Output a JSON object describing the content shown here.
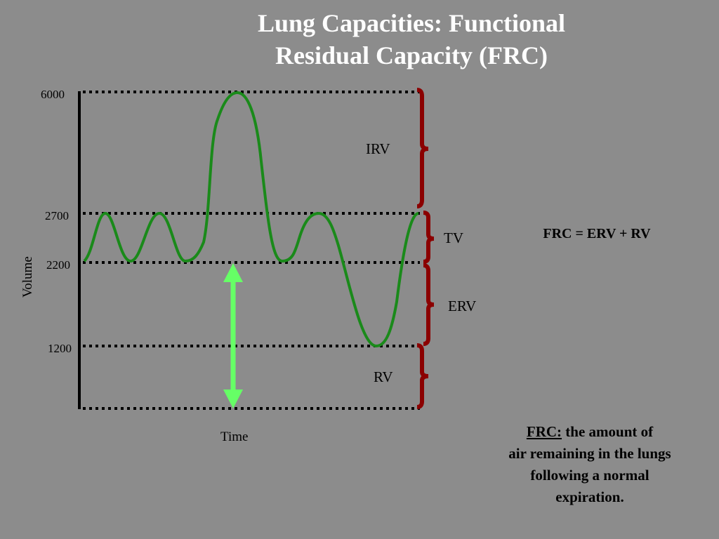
{
  "title": {
    "line1": "Lung Capacities: Functional",
    "line2": "Residual Capacity (FRC)"
  },
  "diagram": {
    "y_axis_label": "Volume",
    "x_axis_label": "Time",
    "ticks": [
      "6000",
      "2700",
      "2200",
      "1200"
    ],
    "segments": [
      {
        "label": "IRV"
      },
      {
        "label": "TV"
      },
      {
        "label": "ERV"
      },
      {
        "label": "RV"
      }
    ],
    "colors": {
      "curve": "#1a8a1a",
      "arrow": "#66ff66",
      "brace": "#8b0000",
      "axis": "#000000"
    }
  },
  "formula": "FRC = ERV + RV",
  "definition": {
    "term": "FRC:",
    "line1_rest": " the amount of",
    "line2": "air remaining in the lungs",
    "line3": "following a normal",
    "line4": "expiration."
  }
}
